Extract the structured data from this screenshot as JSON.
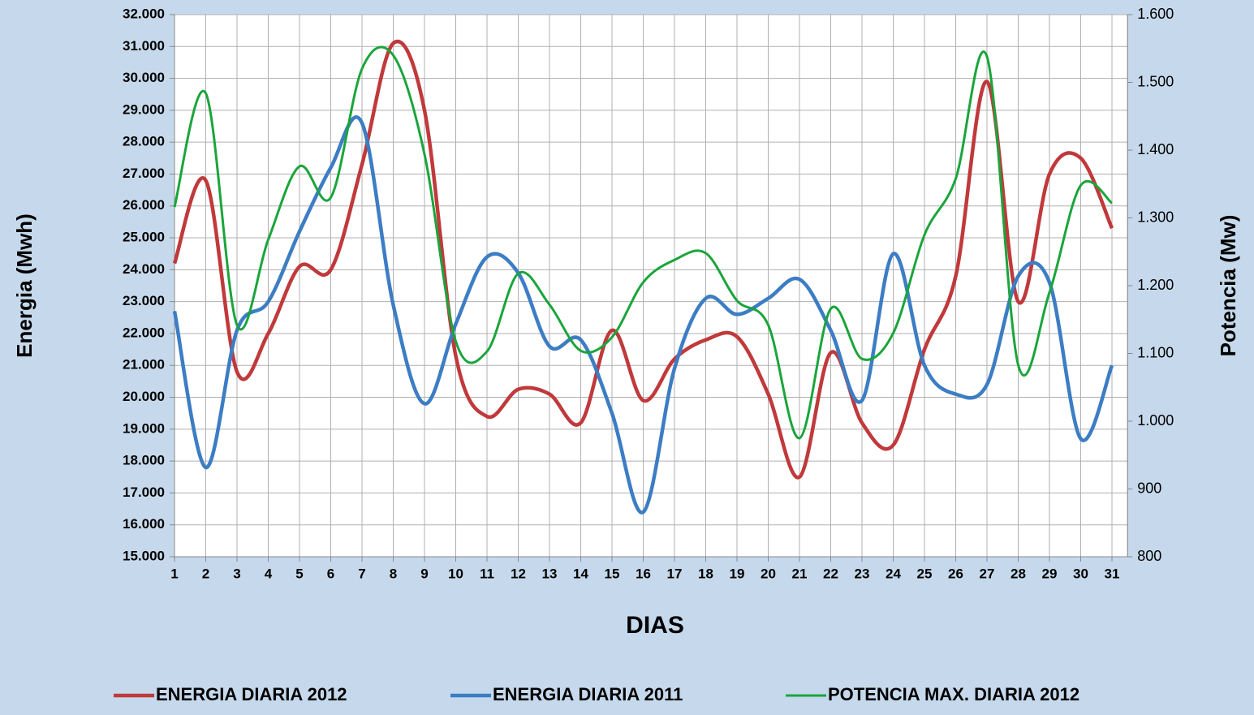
{
  "chart_data": {
    "type": "line",
    "x_label": "DIAS",
    "y_label": "Energia (Mwh)",
    "y2_label": "Potencia (Mw)",
    "categories": [
      "1",
      "2",
      "3",
      "4",
      "5",
      "6",
      "7",
      "8",
      "9",
      "10",
      "11",
      "12",
      "13",
      "14",
      "15",
      "16",
      "17",
      "18",
      "19",
      "20",
      "21",
      "22",
      "23",
      "24",
      "25",
      "26",
      "27",
      "28",
      "29",
      "30",
      "31"
    ],
    "series": [
      {
        "name": "ENERGIA DIARIA 2012",
        "color": "#c0393b",
        "values": [
          24200,
          26800,
          20800,
          22000,
          24100,
          24000,
          27300,
          31100,
          29000,
          21300,
          19400,
          20250,
          20100,
          19200,
          22100,
          19900,
          21200,
          21800,
          21900,
          20100,
          17500,
          21400,
          19200,
          18500,
          21500,
          23800,
          29900,
          23000,
          27000,
          27500,
          25300
        ]
      },
      {
        "name": "ENERGIA DIARIA 2011",
        "color": "#3c7dc4",
        "values": [
          22700,
          17800,
          22100,
          23000,
          25200,
          27200,
          28600,
          22900,
          19800,
          22300,
          24400,
          23900,
          21600,
          21800,
          19500,
          16400,
          20900,
          23100,
          22600,
          23100,
          23700,
          22100,
          19900,
          24500,
          21000,
          20100,
          20400,
          23800,
          23600,
          18700,
          21000
        ]
      },
      {
        "name": "POTENCIA MAX. DIARIA 2012",
        "color": "#1aa53b",
        "axis": "y2",
        "values": [
          1316,
          1484,
          1142,
          1268,
          1376,
          1330,
          1520,
          1540,
          1394,
          1118,
          1103,
          1218,
          1172,
          1104,
          1124,
          1205,
          1238,
          1248,
          1178,
          1142,
          975,
          1166,
          1092,
          1130,
          1275,
          1358,
          1538,
          1083,
          1190,
          1348,
          1322
        ]
      }
    ],
    "ylim": [
      15000,
      32000
    ],
    "yticks": [
      {
        "value": 15000,
        "label": "15.000"
      },
      {
        "value": 16000,
        "label": "16.000"
      },
      {
        "value": 17000,
        "label": "17.000"
      },
      {
        "value": 18000,
        "label": "18.000"
      },
      {
        "value": 19000,
        "label": "19.000"
      },
      {
        "value": 20000,
        "label": "20.000"
      },
      {
        "value": 21000,
        "label": "21.000"
      },
      {
        "value": 22000,
        "label": "22.000"
      },
      {
        "value": 23000,
        "label": "23.000"
      },
      {
        "value": 24000,
        "label": "24.000"
      },
      {
        "value": 25000,
        "label": "25.000"
      },
      {
        "value": 26000,
        "label": "26.000"
      },
      {
        "value": 27000,
        "label": "27.000"
      },
      {
        "value": 28000,
        "label": "28.000"
      },
      {
        "value": 29000,
        "label": "29.000"
      },
      {
        "value": 30000,
        "label": "30.000"
      },
      {
        "value": 31000,
        "label": "31.000"
      },
      {
        "value": 32000,
        "label": "32.000"
      }
    ],
    "y2lim": [
      800,
      1600
    ],
    "y2ticks": [
      800,
      900,
      {
        "value": 1000,
        "label": "1.000"
      },
      {
        "value": 1100,
        "label": "1.100"
      },
      {
        "value": 1200,
        "label": "1.200"
      },
      {
        "value": 1300,
        "label": "1.300"
      },
      {
        "value": 1400,
        "label": "1.400"
      },
      {
        "value": 1500,
        "label": "1.500"
      },
      {
        "value": 1600,
        "label": "1.600"
      }
    ],
    "grid": true,
    "legend": "bottom"
  }
}
